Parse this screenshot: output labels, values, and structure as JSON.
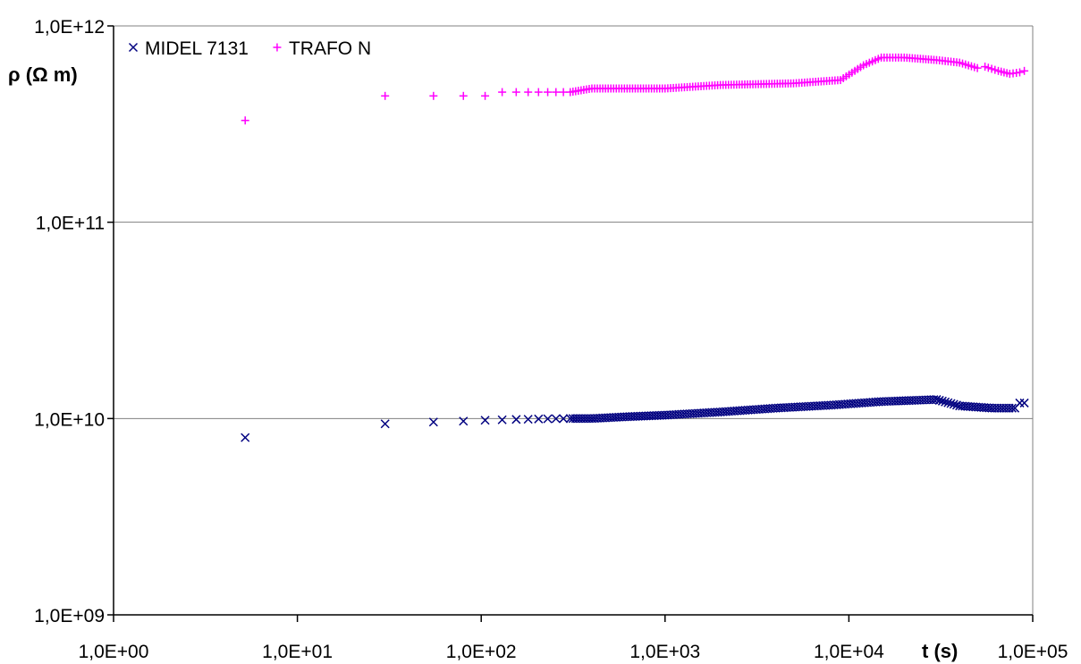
{
  "chart_data": {
    "type": "scatter",
    "xscale": "log",
    "yscale": "log",
    "xlim": [
      1,
      100000
    ],
    "ylim": [
      1000000000,
      1000000000000
    ],
    "grid": "horizontal major",
    "legend_position": "top-left",
    "xlabel": "t (s)",
    "ylabel": "ρ (Ω m)",
    "xticks": [
      "1,0E+00",
      "1,0E+01",
      "1,0E+02",
      "1,0E+03",
      "1,0E+04",
      "1,0E+05"
    ],
    "yticks": [
      "1,0E+09",
      "1,0E+10",
      "1,0E+11",
      "1,0E+12"
    ],
    "series": [
      {
        "name": "MIDEL 7131",
        "marker": "x",
        "color": "#000080",
        "points": [
          [
            5.2,
            8000000000.0
          ],
          [
            30,
            9400000000.0
          ],
          [
            55,
            9600000000.0
          ],
          [
            80,
            9700000000.0
          ],
          [
            105,
            9800000000.0
          ],
          [
            130,
            9850000000.0
          ],
          [
            155,
            9900000000.0
          ],
          [
            180,
            9920000000.0
          ],
          [
            205,
            9950000000.0
          ],
          [
            230,
            9970000000.0
          ],
          [
            255,
            9980000000.0
          ],
          [
            280,
            9990000000.0
          ],
          [
            305,
            10000000000.0
          ],
          [
            400,
            10000000000.0
          ],
          [
            600,
            10200000000.0
          ],
          [
            1000,
            10400000000.0
          ],
          [
            2000,
            10800000000.0
          ],
          [
            4000,
            11300000000.0
          ],
          [
            8000,
            11700000000.0
          ],
          [
            15000,
            12200000000.0
          ],
          [
            30000,
            12500000000.0
          ],
          [
            40000,
            11600000000.0
          ],
          [
            60000,
            11300000000.0
          ],
          [
            80000,
            11300000000.0
          ],
          [
            85000,
            12000000000.0
          ],
          [
            90000,
            12000000000.0
          ]
        ]
      },
      {
        "name": "TRAFO N",
        "marker": "+",
        "color": "#FF00FF",
        "points": [
          [
            5.2,
            330000000000.0
          ],
          [
            30,
            440000000000.0
          ],
          [
            55,
            440000000000.0
          ],
          [
            80,
            440000000000.0
          ],
          [
            105,
            440000000000.0
          ],
          [
            130,
            460000000000.0
          ],
          [
            155,
            460000000000.0
          ],
          [
            180,
            460000000000.0
          ],
          [
            205,
            460000000000.0
          ],
          [
            230,
            460000000000.0
          ],
          [
            255,
            460000000000.0
          ],
          [
            280,
            460000000000.0
          ],
          [
            305,
            460000000000.0
          ],
          [
            400,
            480000000000.0
          ],
          [
            1000,
            480000000000.0
          ],
          [
            2000,
            500000000000.0
          ],
          [
            5000,
            510000000000.0
          ],
          [
            9000,
            530000000000.0
          ],
          [
            12000,
            630000000000.0
          ],
          [
            15000,
            690000000000.0
          ],
          [
            20000,
            690000000000.0
          ],
          [
            30000,
            670000000000.0
          ],
          [
            40000,
            650000000000.0
          ],
          [
            50000,
            610000000000.0
          ],
          [
            55000,
            620000000000.0
          ],
          [
            65000,
            590000000000.0
          ],
          [
            75000,
            570000000000.0
          ],
          [
            85000,
            580000000000.0
          ],
          [
            90000,
            590000000000.0
          ]
        ]
      }
    ]
  }
}
